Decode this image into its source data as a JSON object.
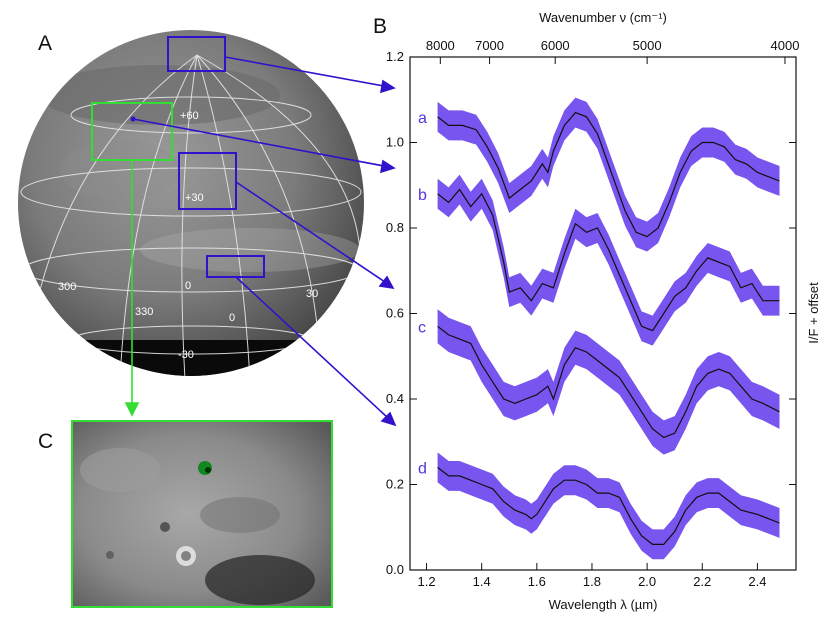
{
  "panels": {
    "a_label": "A",
    "b_label": "B",
    "c_label": "C"
  },
  "globe": {
    "grid_labels": {
      "lat60": "+60",
      "lat30": "+30",
      "lon0_upper": "0",
      "lon0_lower": "0",
      "lon300": "300",
      "lon330": "330",
      "lon30": "30",
      "latm30": "-30"
    }
  },
  "chart_data": {
    "type": "line",
    "title": "",
    "xlabel": "Wavelength λ (µm)",
    "ylabel": "I/F + offset",
    "top_axis_label": "Wavenumber ν (cm⁻¹)",
    "xlim": [
      1.14,
      2.54
    ],
    "ylim": [
      0.0,
      1.2
    ],
    "x_ticks": [
      "1.2",
      "1.4",
      "1.6",
      "1.8",
      "2.0",
      "2.2",
      "2.4"
    ],
    "y_ticks": [
      "0.0",
      "0.2",
      "0.4",
      "0.6",
      "0.8",
      "1.0",
      "1.2"
    ],
    "top_ticks": [
      "8000",
      "7000",
      "6000",
      "5000",
      "4000"
    ],
    "series": [
      {
        "name": "a",
        "band": 0.035,
        "x": [
          1.24,
          1.28,
          1.33,
          1.38,
          1.42,
          1.46,
          1.5,
          1.54,
          1.58,
          1.62,
          1.64,
          1.66,
          1.7,
          1.74,
          1.78,
          1.82,
          1.87,
          1.92,
          1.96,
          2.0,
          2.04,
          2.08,
          2.12,
          2.16,
          2.2,
          2.24,
          2.28,
          2.32,
          2.36,
          2.4,
          2.44,
          2.48
        ],
        "y": [
          1.06,
          1.04,
          1.04,
          1.03,
          0.99,
          0.94,
          0.87,
          0.89,
          0.91,
          0.95,
          0.93,
          0.98,
          1.04,
          1.07,
          1.06,
          1.02,
          0.93,
          0.84,
          0.79,
          0.78,
          0.8,
          0.86,
          0.93,
          0.98,
          1.0,
          1.0,
          0.99,
          0.96,
          0.95,
          0.93,
          0.92,
          0.91
        ]
      },
      {
        "name": "b",
        "band": 0.035,
        "x": [
          1.24,
          1.28,
          1.32,
          1.36,
          1.4,
          1.44,
          1.48,
          1.5,
          1.54,
          1.58,
          1.62,
          1.66,
          1.7,
          1.74,
          1.78,
          1.82,
          1.86,
          1.9,
          1.94,
          1.98,
          2.02,
          2.06,
          2.1,
          2.14,
          2.18,
          2.22,
          2.26,
          2.3,
          2.34,
          2.38,
          2.42,
          2.48
        ],
        "y": [
          0.88,
          0.86,
          0.89,
          0.85,
          0.88,
          0.83,
          0.72,
          0.65,
          0.66,
          0.63,
          0.67,
          0.66,
          0.74,
          0.81,
          0.79,
          0.8,
          0.75,
          0.69,
          0.63,
          0.57,
          0.56,
          0.6,
          0.64,
          0.66,
          0.7,
          0.73,
          0.72,
          0.71,
          0.66,
          0.67,
          0.63,
          0.63
        ]
      },
      {
        "name": "c",
        "band": 0.04,
        "x": [
          1.24,
          1.28,
          1.32,
          1.36,
          1.4,
          1.44,
          1.48,
          1.52,
          1.56,
          1.6,
          1.64,
          1.66,
          1.7,
          1.74,
          1.78,
          1.82,
          1.86,
          1.9,
          1.94,
          1.98,
          2.02,
          2.06,
          2.1,
          2.14,
          2.18,
          2.22,
          2.26,
          2.3,
          2.34,
          2.38,
          2.42,
          2.48
        ],
        "y": [
          0.57,
          0.55,
          0.54,
          0.53,
          0.48,
          0.44,
          0.4,
          0.39,
          0.4,
          0.41,
          0.43,
          0.4,
          0.48,
          0.52,
          0.51,
          0.49,
          0.47,
          0.45,
          0.41,
          0.37,
          0.33,
          0.31,
          0.32,
          0.37,
          0.43,
          0.46,
          0.47,
          0.46,
          0.43,
          0.4,
          0.39,
          0.37
        ]
      },
      {
        "name": "d",
        "band": 0.035,
        "x": [
          1.24,
          1.28,
          1.32,
          1.36,
          1.4,
          1.44,
          1.48,
          1.52,
          1.56,
          1.58,
          1.6,
          1.62,
          1.66,
          1.7,
          1.74,
          1.78,
          1.82,
          1.86,
          1.9,
          1.94,
          1.98,
          2.02,
          2.06,
          2.1,
          2.14,
          2.18,
          2.22,
          2.26,
          2.3,
          2.34,
          2.4,
          2.48
        ],
        "y": [
          0.24,
          0.22,
          0.22,
          0.21,
          0.2,
          0.19,
          0.16,
          0.14,
          0.13,
          0.12,
          0.13,
          0.15,
          0.19,
          0.21,
          0.21,
          0.2,
          0.18,
          0.18,
          0.17,
          0.12,
          0.08,
          0.06,
          0.06,
          0.09,
          0.14,
          0.17,
          0.18,
          0.18,
          0.16,
          0.14,
          0.13,
          0.11
        ]
      }
    ]
  },
  "colors": {
    "band": "#7755ee",
    "line": "#111111",
    "box_blue": "#3311cc",
    "box_green": "#33dd33",
    "label": "#5533dd"
  }
}
